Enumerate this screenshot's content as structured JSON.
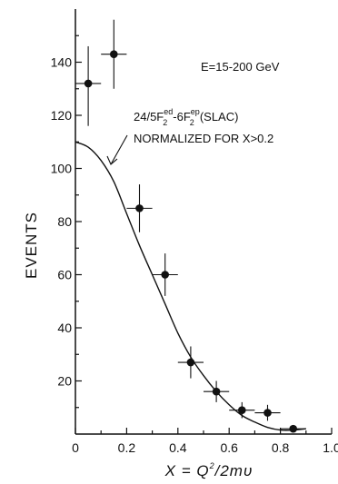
{
  "chart_data": {
    "type": "scatter",
    "title": "",
    "xlabel": "X = Q",
    "xlabel_sup": "2",
    "xlabel_rest": "/2mυ",
    "ylabel": "EVENTS",
    "xlim": [
      0,
      1.0
    ],
    "ylim": [
      0,
      160
    ],
    "x_ticks": [
      0,
      0.2,
      0.4,
      0.6,
      0.8,
      1.0
    ],
    "x_tick_labels": [
      "0",
      "0.2",
      "0.4",
      "0.6",
      "0.8",
      "1.0"
    ],
    "y_ticks": [
      20,
      40,
      60,
      80,
      100,
      120,
      140
    ],
    "y_tick_labels": [
      "20",
      "40",
      "60",
      "80",
      "100",
      "120",
      "140"
    ],
    "grid": false,
    "energy_label": "E=15-200 GeV",
    "curve_label": {
      "prefix": "24/5F",
      "sub1": "2",
      "sup1": "ed",
      "mid": "-6F",
      "sub2": "2",
      "sup2": "ep",
      "suffix": "(SLAC)",
      "line2": "NORMALIZED FOR X>0.2"
    },
    "points": [
      {
        "x": 0.05,
        "y": 132,
        "xerr": 0.05,
        "yerr_lo": 16,
        "yerr_hi": 14
      },
      {
        "x": 0.15,
        "y": 143,
        "xerr": 0.05,
        "yerr_lo": 13,
        "yerr_hi": 13
      },
      {
        "x": 0.25,
        "y": 85,
        "xerr": 0.05,
        "yerr_lo": 9,
        "yerr_hi": 9
      },
      {
        "x": 0.35,
        "y": 60,
        "xerr": 0.05,
        "yerr_lo": 8,
        "yerr_hi": 8
      },
      {
        "x": 0.45,
        "y": 27,
        "xerr": 0.05,
        "yerr_lo": 6,
        "yerr_hi": 6
      },
      {
        "x": 0.55,
        "y": 16,
        "xerr": 0.05,
        "yerr_lo": 4,
        "yerr_hi": 4
      },
      {
        "x": 0.65,
        "y": 9,
        "xerr": 0.05,
        "yerr_lo": 3,
        "yerr_hi": 3
      },
      {
        "x": 0.75,
        "y": 8,
        "xerr": 0.05,
        "yerr_lo": 3,
        "yerr_hi": 3
      },
      {
        "x": 0.85,
        "y": 2,
        "xerr": 0.05,
        "yerr_lo": 1,
        "yerr_hi": 1
      }
    ],
    "curve": {
      "x": [
        0.0,
        0.05,
        0.1,
        0.15,
        0.2,
        0.25,
        0.3,
        0.35,
        0.4,
        0.45,
        0.5,
        0.55,
        0.6,
        0.65,
        0.7,
        0.75,
        0.8,
        0.85,
        0.9
      ],
      "y": [
        110,
        108,
        103,
        95,
        83,
        71,
        60,
        49,
        38,
        29,
        22,
        16,
        11,
        7,
        4.5,
        2.5,
        1.5,
        1.5,
        2
      ]
    }
  }
}
